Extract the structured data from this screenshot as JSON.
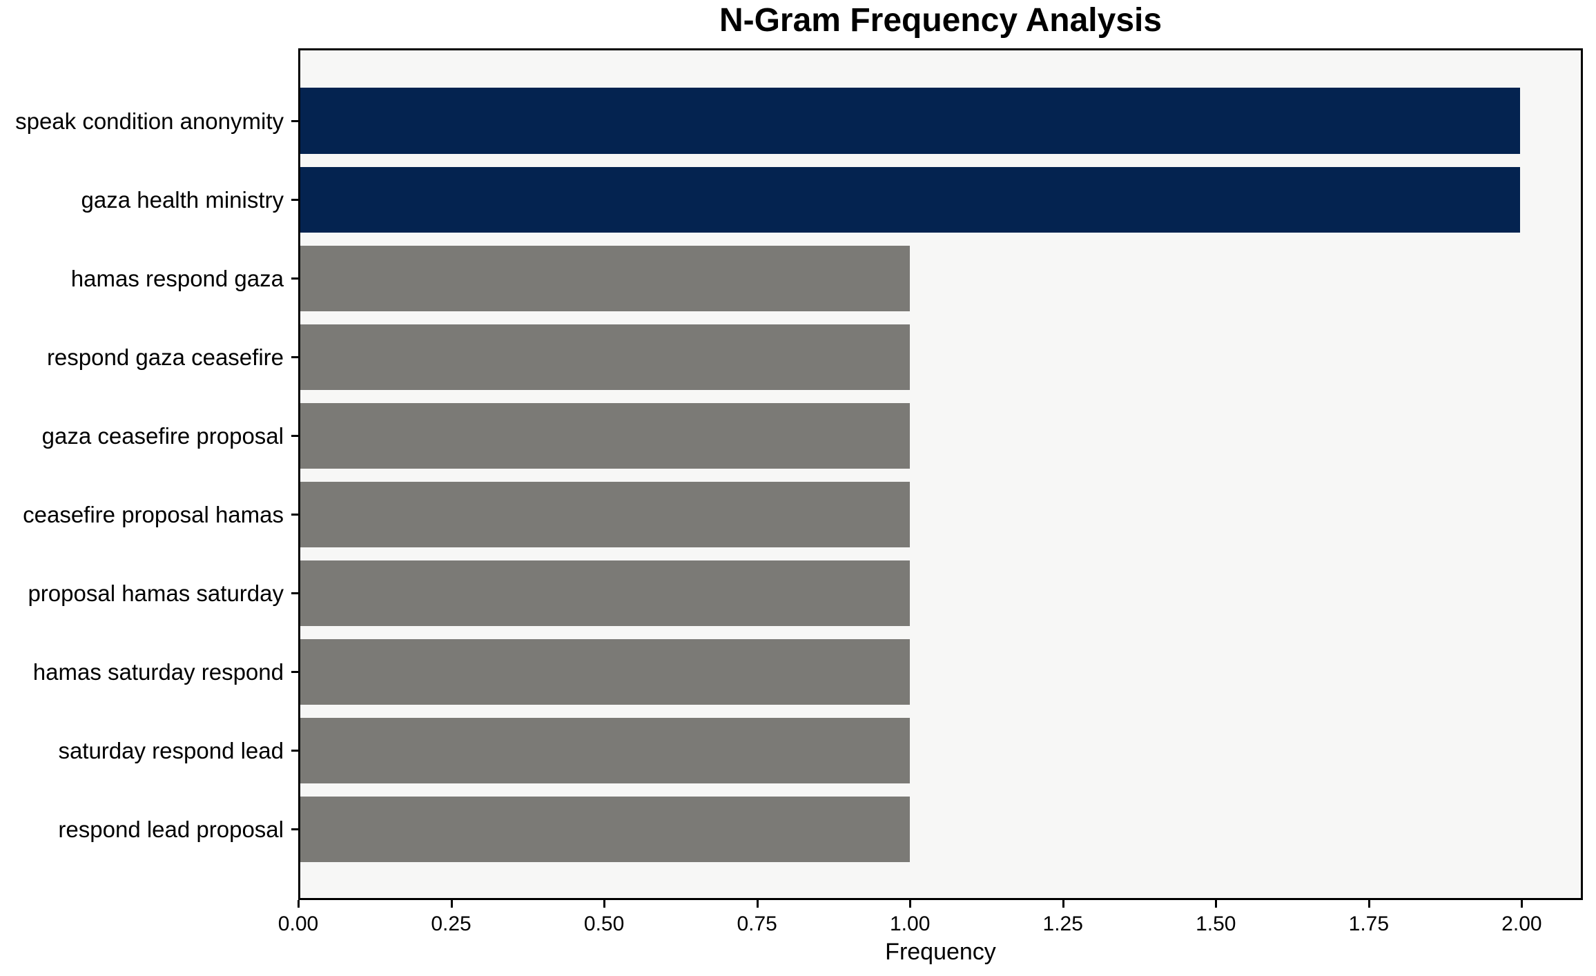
{
  "chart_data": {
    "type": "bar",
    "orientation": "horizontal",
    "title": "N-Gram Frequency Analysis",
    "xlabel": "Frequency",
    "ylabel": "",
    "categories": [
      "speak condition anonymity",
      "gaza health ministry",
      "hamas respond gaza",
      "respond gaza ceasefire",
      "gaza ceasefire proposal",
      "ceasefire proposal hamas",
      "proposal hamas saturday",
      "hamas saturday respond",
      "saturday respond lead",
      "respond lead proposal"
    ],
    "values": [
      2,
      2,
      1,
      1,
      1,
      1,
      1,
      1,
      1,
      1
    ],
    "bar_colors": [
      "#042350",
      "#042350",
      "#7b7a76",
      "#7b7a76",
      "#7b7a76",
      "#7b7a76",
      "#7b7a76",
      "#7b7a76",
      "#7b7a76",
      "#7b7a76"
    ],
    "xlim": [
      0,
      2.1
    ],
    "xticks": [
      0,
      0.25,
      0.5,
      0.75,
      1.0,
      1.25,
      1.5,
      1.75,
      2.0
    ],
    "xtick_labels": [
      "0.00",
      "0.25",
      "0.50",
      "0.75",
      "1.00",
      "1.25",
      "1.50",
      "1.75",
      "2.00"
    ],
    "grid": false,
    "legend": null,
    "bar_height_fraction": 0.834,
    "colors": {
      "highlight": "#042350",
      "bar_default": "#7b7a76",
      "plot_background": "#f7f7f6",
      "figure_background": "#ffffff",
      "spine": "#000000",
      "text": "#000000"
    }
  }
}
